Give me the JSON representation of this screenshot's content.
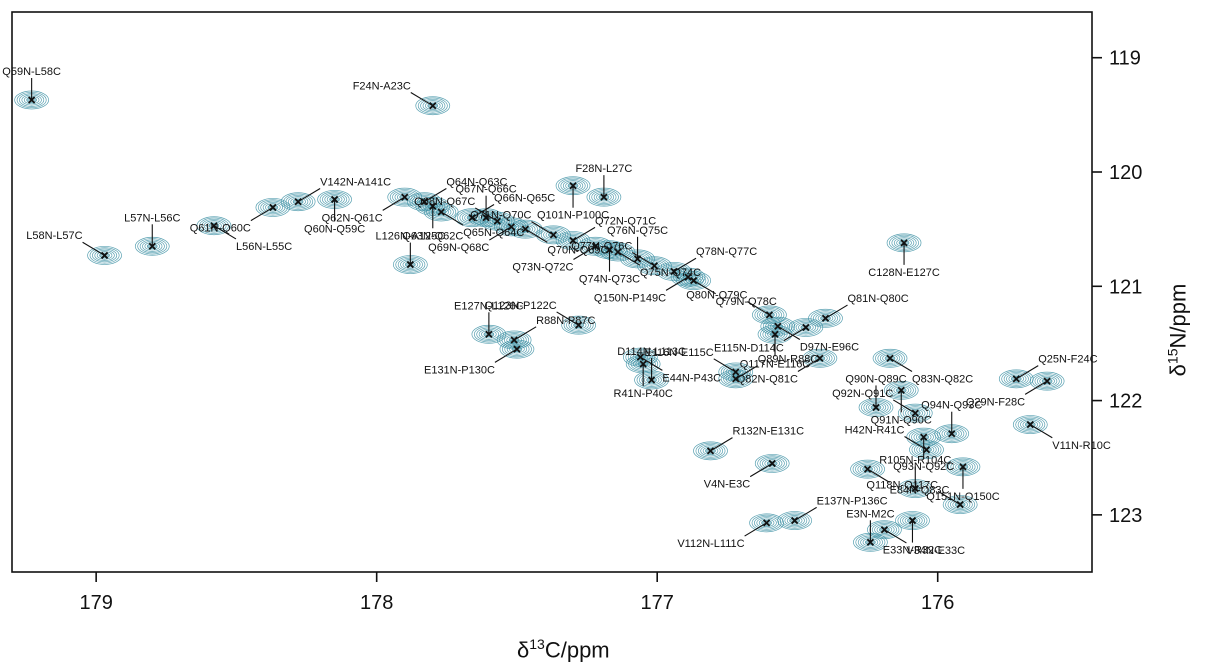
{
  "chart_data": {
    "type": "scatter",
    "xlabel_base": "δ",
    "xlabel_sup": "13",
    "xlabel_rest": "C/ppm",
    "ylabel_base": "δ",
    "ylabel_sup": "15",
    "ylabel_rest": "N/ppm",
    "xlim": [
      179.3,
      175.45
    ],
    "ylim": [
      118.6,
      123.5
    ],
    "x_ticks": [
      179,
      178,
      177,
      176
    ],
    "y_ticks": [
      119,
      120,
      121,
      122,
      123
    ],
    "contour_color": "#3b8fa3",
    "marker_color": "#111111",
    "peaks": [
      {
        "label": "Q59N-L58C",
        "x": 179.23,
        "y": 119.37
      },
      {
        "label": "F24N-A23C",
        "x": 177.8,
        "y": 119.42
      },
      {
        "label": "V142N-A141C",
        "x": 178.28,
        "y": 120.26
      },
      {
        "label": "Q61N-Q60C",
        "x": 178.37,
        "y": 120.31
      },
      {
        "label": "L56N-L55C",
        "x": 178.58,
        "y": 120.47
      },
      {
        "label": "Q60N-Q59C",
        "x": 178.15,
        "y": 120.24
      },
      {
        "label": "L57N-L56C",
        "x": 178.8,
        "y": 120.65
      },
      {
        "label": "L58N-L57C",
        "x": 178.97,
        "y": 120.73
      },
      {
        "label": "Q64N-Q63C",
        "x": 177.83,
        "y": 120.26
      },
      {
        "label": "Q62N-Q61C",
        "x": 177.9,
        "y": 120.22
      },
      {
        "label": "Q65N-Q64C",
        "x": 177.77,
        "y": 120.35
      },
      {
        "label": "Q63N-Q62C",
        "x": 177.8,
        "y": 120.3
      },
      {
        "label": "Q67N-Q66C",
        "x": 177.61,
        "y": 120.4
      },
      {
        "label": "Q68N-Q67C",
        "x": 177.57,
        "y": 120.43
      },
      {
        "label": "Q66N-Q65C",
        "x": 177.66,
        "y": 120.4
      },
      {
        "label": "Q69N-Q68C",
        "x": 177.52,
        "y": 120.48
      },
      {
        "label": "Q70N-Q69C",
        "x": 177.47,
        "y": 120.5
      },
      {
        "label": "Q101N-P100C",
        "x": 177.3,
        "y": 120.12
      },
      {
        "label": "F28N-L27C",
        "x": 177.19,
        "y": 120.22
      },
      {
        "label": "Q71N-Q70C",
        "x": 177.37,
        "y": 120.55
      },
      {
        "label": "Q72N-Q71C",
        "x": 177.3,
        "y": 120.6
      },
      {
        "label": "Q73N-Q72C",
        "x": 177.22,
        "y": 120.65
      },
      {
        "label": "Q75N-Q74C",
        "x": 177.14,
        "y": 120.7
      },
      {
        "label": "Q74N-Q73C",
        "x": 177.17,
        "y": 120.68
      },
      {
        "label": "Q76N-Q75C",
        "x": 177.07,
        "y": 120.76
      },
      {
        "label": "Q77N-Q76C",
        "x": 177.01,
        "y": 120.82
      },
      {
        "label": "Q78N-Q77C",
        "x": 176.94,
        "y": 120.87
      },
      {
        "label": "Q150N-P149C",
        "x": 176.89,
        "y": 120.92
      },
      {
        "label": "Q79N-Q78C",
        "x": 176.87,
        "y": 120.95
      },
      {
        "label": "C128N-E127C",
        "x": 176.12,
        "y": 120.62
      },
      {
        "label": "L126N-A125C",
        "x": 177.88,
        "y": 120.81
      },
      {
        "label": "Q80N-Q79C",
        "x": 176.6,
        "y": 121.25
      },
      {
        "label": "Q81N-Q80C",
        "x": 176.4,
        "y": 121.28
      },
      {
        "label": "E115N-D114C",
        "x": 176.47,
        "y": 121.36
      },
      {
        "label": "D97N-E96C",
        "x": 176.57,
        "y": 121.35
      },
      {
        "label": "Q117N-E116C",
        "x": 176.58,
        "y": 121.42
      },
      {
        "label": "E127N-L126C",
        "x": 177.6,
        "y": 121.42
      },
      {
        "label": "Q123N-P122C",
        "x": 177.28,
        "y": 121.34
      },
      {
        "label": "R88N-P87C",
        "x": 177.51,
        "y": 121.47
      },
      {
        "label": "E131N-P130C",
        "x": 177.5,
        "y": 121.55
      },
      {
        "label": "E44N-P43C",
        "x": 177.06,
        "y": 121.62
      },
      {
        "label": "R41N-P40C",
        "x": 177.05,
        "y": 121.68
      },
      {
        "label": "D114N-L113C",
        "x": 177.02,
        "y": 121.82
      },
      {
        "label": "E116N-E115C",
        "x": 176.72,
        "y": 121.75
      },
      {
        "label": "Q89N-R88C",
        "x": 176.72,
        "y": 121.81
      },
      {
        "label": "Q82N-Q81C",
        "x": 176.42,
        "y": 121.63
      },
      {
        "label": "Q83N-Q82C",
        "x": 176.17,
        "y": 121.63
      },
      {
        "label": "Q91N-Q90C",
        "x": 176.13,
        "y": 121.91
      },
      {
        "label": "Q90N-Q89C",
        "x": 176.22,
        "y": 122.06
      },
      {
        "label": "Q92N-Q91C",
        "x": 176.08,
        "y": 122.11
      },
      {
        "label": "Q25N-F24C",
        "x": 175.72,
        "y": 121.81
      },
      {
        "label": "Q29N-F28C",
        "x": 175.61,
        "y": 121.83
      },
      {
        "label": "V11N-R10C",
        "x": 175.67,
        "y": 122.21
      },
      {
        "label": "Q93N-Q92C",
        "x": 176.05,
        "y": 122.32
      },
      {
        "label": "Q94N-Q93C",
        "x": 175.95,
        "y": 122.29
      },
      {
        "label": "H42N-R41C",
        "x": 176.04,
        "y": 122.43
      },
      {
        "label": "R132N-E131C",
        "x": 176.81,
        "y": 122.44
      },
      {
        "label": "V4N-E3C",
        "x": 176.59,
        "y": 122.55
      },
      {
        "label": "E84N-Q83C",
        "x": 176.25,
        "y": 122.6
      },
      {
        "label": "Q151N-Q150C",
        "x": 175.91,
        "y": 122.58
      },
      {
        "label": "R105N-R104C",
        "x": 176.08,
        "y": 122.77
      },
      {
        "label": "Q118N-Q117C",
        "x": 175.92,
        "y": 122.91
      },
      {
        "label": "E137N-P136C",
        "x": 176.51,
        "y": 123.05
      },
      {
        "label": "V112N-L111C",
        "x": 176.61,
        "y": 123.07
      },
      {
        "label": "V34N-E33C",
        "x": 176.19,
        "y": 123.13
      },
      {
        "label": "E33N-R32C",
        "x": 176.09,
        "y": 123.05
      },
      {
        "label": "E3N-M2C",
        "x": 176.24,
        "y": 123.24
      }
    ]
  }
}
